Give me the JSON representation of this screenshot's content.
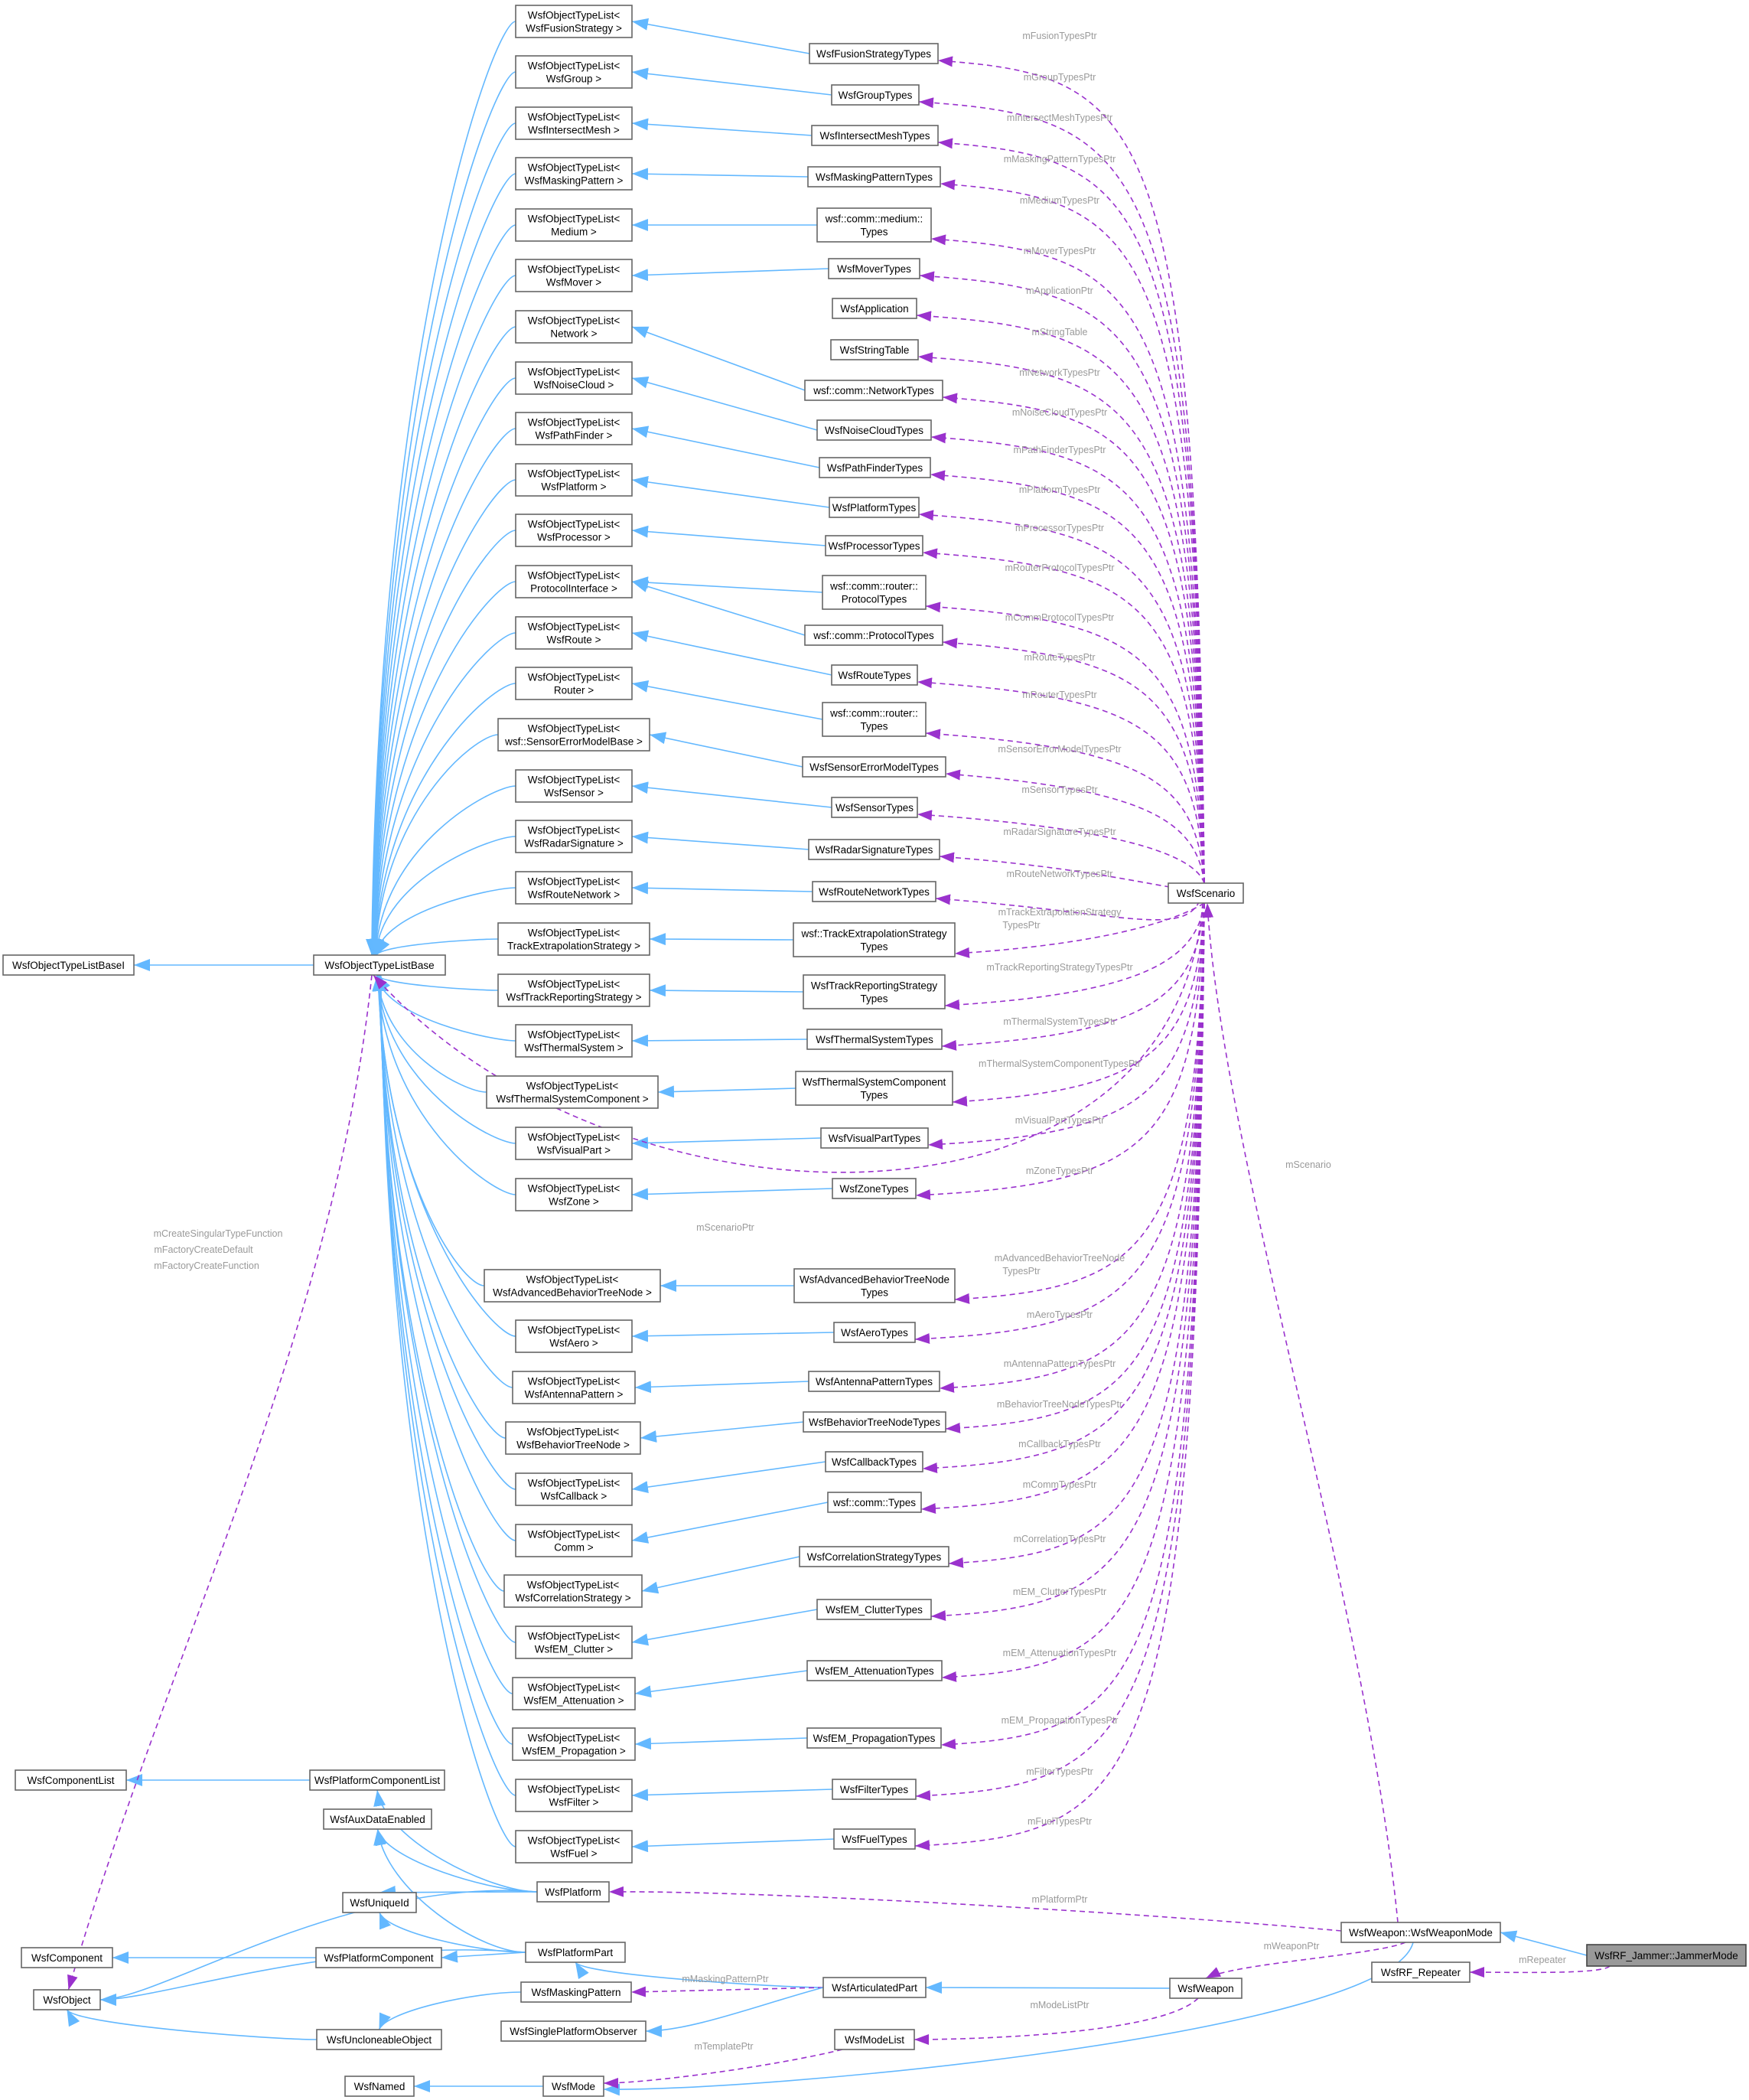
{
  "colors": {
    "inheritance_edge": "#63b8ff",
    "usage_edge": "#9a32cd",
    "edge_label": "#9a9a9a",
    "node_border": "#666666",
    "focus_fill": "#999999"
  },
  "nodes": {
    "list_fusion": [
      "WsfObjectTypeList<",
      "WsfFusionStrategy >"
    ],
    "list_group": [
      "WsfObjectTypeList<",
      "WsfGroup >"
    ],
    "list_intersect": [
      "WsfObjectTypeList<",
      "WsfIntersectMesh >"
    ],
    "list_masking": [
      "WsfObjectTypeList<",
      "WsfMaskingPattern >"
    ],
    "list_medium": [
      "WsfObjectTypeList<",
      "Medium >"
    ],
    "list_mover": [
      "WsfObjectTypeList<",
      "WsfMover >"
    ],
    "list_network": [
      "WsfObjectTypeList<",
      "Network >"
    ],
    "list_noise": [
      "WsfObjectTypeList<",
      "WsfNoiseCloud >"
    ],
    "list_path": [
      "WsfObjectTypeList<",
      "WsfPathFinder >"
    ],
    "list_platform": [
      "WsfObjectTypeList<",
      "WsfPlatform >"
    ],
    "list_processor": [
      "WsfObjectTypeList<",
      "WsfProcessor >"
    ],
    "list_protocol": [
      "WsfObjectTypeList<",
      "ProtocolInterface >"
    ],
    "list_route": [
      "WsfObjectTypeList<",
      "WsfRoute >"
    ],
    "list_router": [
      "WsfObjectTypeList<",
      "Router >"
    ],
    "list_sensorerr": [
      "WsfObjectTypeList<",
      "wsf::SensorErrorModelBase >"
    ],
    "list_sensor": [
      "WsfObjectTypeList<",
      "WsfSensor >"
    ],
    "list_radar": [
      "WsfObjectTypeList<",
      "WsfRadarSignature >"
    ],
    "list_routenet": [
      "WsfObjectTypeList<",
      "WsfRouteNetwork >"
    ],
    "list_trackextrap": [
      "WsfObjectTypeList<",
      "TrackExtrapolationStrategy >"
    ],
    "list_trackrep": [
      "WsfObjectTypeList<",
      "WsfTrackReportingStrategy >"
    ],
    "list_thermal": [
      "WsfObjectTypeList<",
      "WsfThermalSystem >"
    ],
    "list_thermalcomp": [
      "WsfObjectTypeList<",
      "WsfThermalSystemComponent >"
    ],
    "list_visual": [
      "WsfObjectTypeList<",
      "WsfVisualPart >"
    ],
    "list_zone": [
      "WsfObjectTypeList<",
      "WsfZone >"
    ],
    "list_advbt": [
      "WsfObjectTypeList<",
      "WsfAdvancedBehaviorTreeNode >"
    ],
    "list_aero": [
      "WsfObjectTypeList<",
      "WsfAero >"
    ],
    "list_antenna": [
      "WsfObjectTypeList<",
      "WsfAntennaPattern >"
    ],
    "list_bt": [
      "WsfObjectTypeList<",
      "WsfBehaviorTreeNode >"
    ],
    "list_callback": [
      "WsfObjectTypeList<",
      "WsfCallback >"
    ],
    "list_comm": [
      "WsfObjectTypeList<",
      "Comm >"
    ],
    "list_correlation": [
      "WsfObjectTypeList<",
      "WsfCorrelationStrategy >"
    ],
    "list_clutter": [
      "WsfObjectTypeList<",
      "WsfEM_Clutter >"
    ],
    "list_atten": [
      "WsfObjectTypeList<",
      "WsfEM_Attenuation >"
    ],
    "list_prop": [
      "WsfObjectTypeList<",
      "WsfEM_Propagation >"
    ],
    "list_filter": [
      "WsfObjectTypeList<",
      "WsfFilter >"
    ],
    "list_fuel": [
      "WsfObjectTypeList<",
      "WsfFuel >"
    ],
    "t_fusion": [
      "WsfFusionStrategyTypes"
    ],
    "t_group": [
      "WsfGroupTypes"
    ],
    "t_intersect": [
      "WsfIntersectMeshTypes"
    ],
    "t_masking": [
      "WsfMaskingPatternTypes"
    ],
    "t_medium": [
      "wsf::comm::medium::",
      "Types"
    ],
    "t_mover": [
      "WsfMoverTypes"
    ],
    "application": [
      "WsfApplication"
    ],
    "stringtable": [
      "WsfStringTable"
    ],
    "t_network": [
      "wsf::comm::NetworkTypes"
    ],
    "t_noise": [
      "WsfNoiseCloudTypes"
    ],
    "t_path": [
      "WsfPathFinderTypes"
    ],
    "t_platform": [
      "WsfPlatformTypes"
    ],
    "t_processor": [
      "WsfProcessorTypes"
    ],
    "t_routerprot": [
      "wsf::comm::router::",
      "ProtocolTypes"
    ],
    "t_commprot": [
      "wsf::comm::ProtocolTypes"
    ],
    "t_route": [
      "WsfRouteTypes"
    ],
    "t_router": [
      "wsf::comm::router::",
      "Types"
    ],
    "t_sensorerr": [
      "WsfSensorErrorModelTypes"
    ],
    "t_sensor": [
      "WsfSensorTypes"
    ],
    "t_radar": [
      "WsfRadarSignatureTypes"
    ],
    "t_routenet": [
      "WsfRouteNetworkTypes"
    ],
    "t_trackextrap": [
      "wsf::TrackExtrapolationStrategy",
      "Types"
    ],
    "t_trackrep": [
      "WsfTrackReportingStrategy",
      "Types"
    ],
    "t_thermal": [
      "WsfThermalSystemTypes"
    ],
    "t_thermalcomp": [
      "WsfThermalSystemComponent",
      "Types"
    ],
    "t_visual": [
      "WsfVisualPartTypes"
    ],
    "t_zone": [
      "WsfZoneTypes"
    ],
    "t_advbt": [
      "WsfAdvancedBehaviorTreeNode",
      "Types"
    ],
    "t_aero": [
      "WsfAeroTypes"
    ],
    "t_antenna": [
      "WsfAntennaPatternTypes"
    ],
    "t_bt": [
      "WsfBehaviorTreeNodeTypes"
    ],
    "t_callback": [
      "WsfCallbackTypes"
    ],
    "t_comm": [
      "wsf::comm::Types"
    ],
    "t_correlation": [
      "WsfCorrelationStrategyTypes"
    ],
    "t_clutter": [
      "WsfEM_ClutterTypes"
    ],
    "t_atten": [
      "WsfEM_AttenuationTypes"
    ],
    "t_prop": [
      "WsfEM_PropagationTypes"
    ],
    "t_filter": [
      "WsfFilterTypes"
    ],
    "t_fuel": [
      "WsfFuelTypes"
    ],
    "basel": [
      "WsfObjectTypeListBaseI"
    ],
    "base": [
      "WsfObjectTypeListBase"
    ],
    "scenario": [
      "WsfScenario"
    ],
    "componentlist": [
      "WsfComponentList"
    ],
    "platcomplist": [
      "WsfPlatformComponentList"
    ],
    "auxdata": [
      "WsfAuxDataEnabled"
    ],
    "uniqueid": [
      "WsfUniqueId"
    ],
    "platform": [
      "WsfPlatform"
    ],
    "component": [
      "WsfComponent"
    ],
    "platcomp": [
      "WsfPlatformComponent"
    ],
    "platpart": [
      "WsfPlatformPart"
    ],
    "object": [
      "WsfObject"
    ],
    "maskpat": [
      "WsfMaskingPattern"
    ],
    "artpart": [
      "WsfArticulatedPart"
    ],
    "weapon": [
      "WsfWeapon"
    ],
    "uncloneable": [
      "WsfUncloneableObject"
    ],
    "singleobs": [
      "WsfSinglePlatformObserver"
    ],
    "modelist": [
      "WsfModeList"
    ],
    "named": [
      "WsfNamed"
    ],
    "mode": [
      "WsfMode"
    ],
    "weaponmode": [
      "WsfWeapon::WsfWeaponMode"
    ],
    "repeater": [
      "WsfRF_Repeater"
    ],
    "jammermode": [
      "WsfRF_Jammer::JammerMode"
    ]
  },
  "edge_labels": {
    "mFusionTypesPtr": "mFusionTypesPtr",
    "mGroupTypesPtr": "mGroupTypesPtr",
    "mIntersectMeshTypesPtr": "mIntersectMeshTypesPtr",
    "mMaskingPatternTypesPtr": "mMaskingPatternTypesPtr",
    "mMediumTypesPtr": "mMediumTypesPtr",
    "mMoverTypesPtr": "mMoverTypesPtr",
    "mApplicationPtr": "mApplicationPtr",
    "mStringTable": "mStringTable",
    "mNetworkTypesPtr": "mNetworkTypesPtr",
    "mNoiseCloudTypesPtr": "mNoiseCloudTypesPtr",
    "mPathFinderTypesPtr": "mPathFinderTypesPtr",
    "mPlatformTypesPtr": "mPlatformTypesPtr",
    "mProcessorTypesPtr": "mProcessorTypesPtr",
    "mRouterProtocolTypesPtr": "mRouterProtocolTypesPtr",
    "mCommProtocolTypesPtr": "mCommProtocolTypesPtr",
    "mRouteTypesPtr": "mRouteTypesPtr",
    "mRouterTypesPtr": "mRouterTypesPtr",
    "mSensorErrorModelTypesPtr": "mSensorErrorModelTypesPtr",
    "mSensorTypesPtr": "mSensorTypesPtr",
    "mRadarSignatureTypesPtr": "mRadarSignatureTypesPtr",
    "mRouteNetworkTypesPtr": "mRouteNetworkTypesPtr",
    "mTrackExtrapolationStrategy1": "mTrackExtrapolationStrategy",
    "mTrackExtrapolationStrategy2": "TypesPtr",
    "mTrackReportingStrategyTypesPtr": "mTrackReportingStrategyTypesPtr",
    "mThermalSystemTypesPtr": "mThermalSystemTypesPtr",
    "mThermalSystemComponentTypesPtr": "mThermalSystemComponentTypesPtr",
    "mVisualPartTypesPtr": "mVisualPartTypesPtr",
    "mZoneTypesPtr": "mZoneTypesPtr",
    "mScenarioPtr": "mScenarioPtr",
    "mAdvancedBehaviorTreeNode1": "mAdvancedBehaviorTreeNode",
    "mAdvancedBehaviorTreeNode2": "TypesPtr",
    "mAeroTypesPtr": "mAeroTypesPtr",
    "mAntennaPatternTypesPtr": "mAntennaPatternTypesPtr",
    "mBehaviorTreeNodeTypesPtr": "mBehaviorTreeNodeTypesPtr",
    "mCallbackTypesPtr": "mCallbackTypesPtr",
    "mCommTypesPtr": "mCommTypesPtr",
    "mCorrelationTypesPtr": "mCorrelationTypesPtr",
    "mEM_ClutterTypesPtr": "mEM_ClutterTypesPtr",
    "mEM_AttenuationTypesPtr": "mEM_AttenuationTypesPtr",
    "mEM_PropagationTypesPtr": "mEM_PropagationTypesPtr",
    "mFilterTypesPtr": "mFilterTypesPtr",
    "mFuelTypesPtr": "mFuelTypesPtr",
    "mScenario": "mScenario",
    "mCreateSingularTypeFunction": "mCreateSingularTypeFunction",
    "mFactoryCreateDefault": "mFactoryCreateDefault",
    "mFactoryCreateFunction": "mFactoryCreateFunction",
    "mPlatformPtr": "mPlatformPtr",
    "mWeaponPtr": "mWeaponPtr",
    "mRepeater": "mRepeater",
    "mMaskingPatternPtr": "mMaskingPatternPtr",
    "mModeListPtr": "mModeListPtr",
    "mTemplatePtr": "mTemplatePtr"
  }
}
